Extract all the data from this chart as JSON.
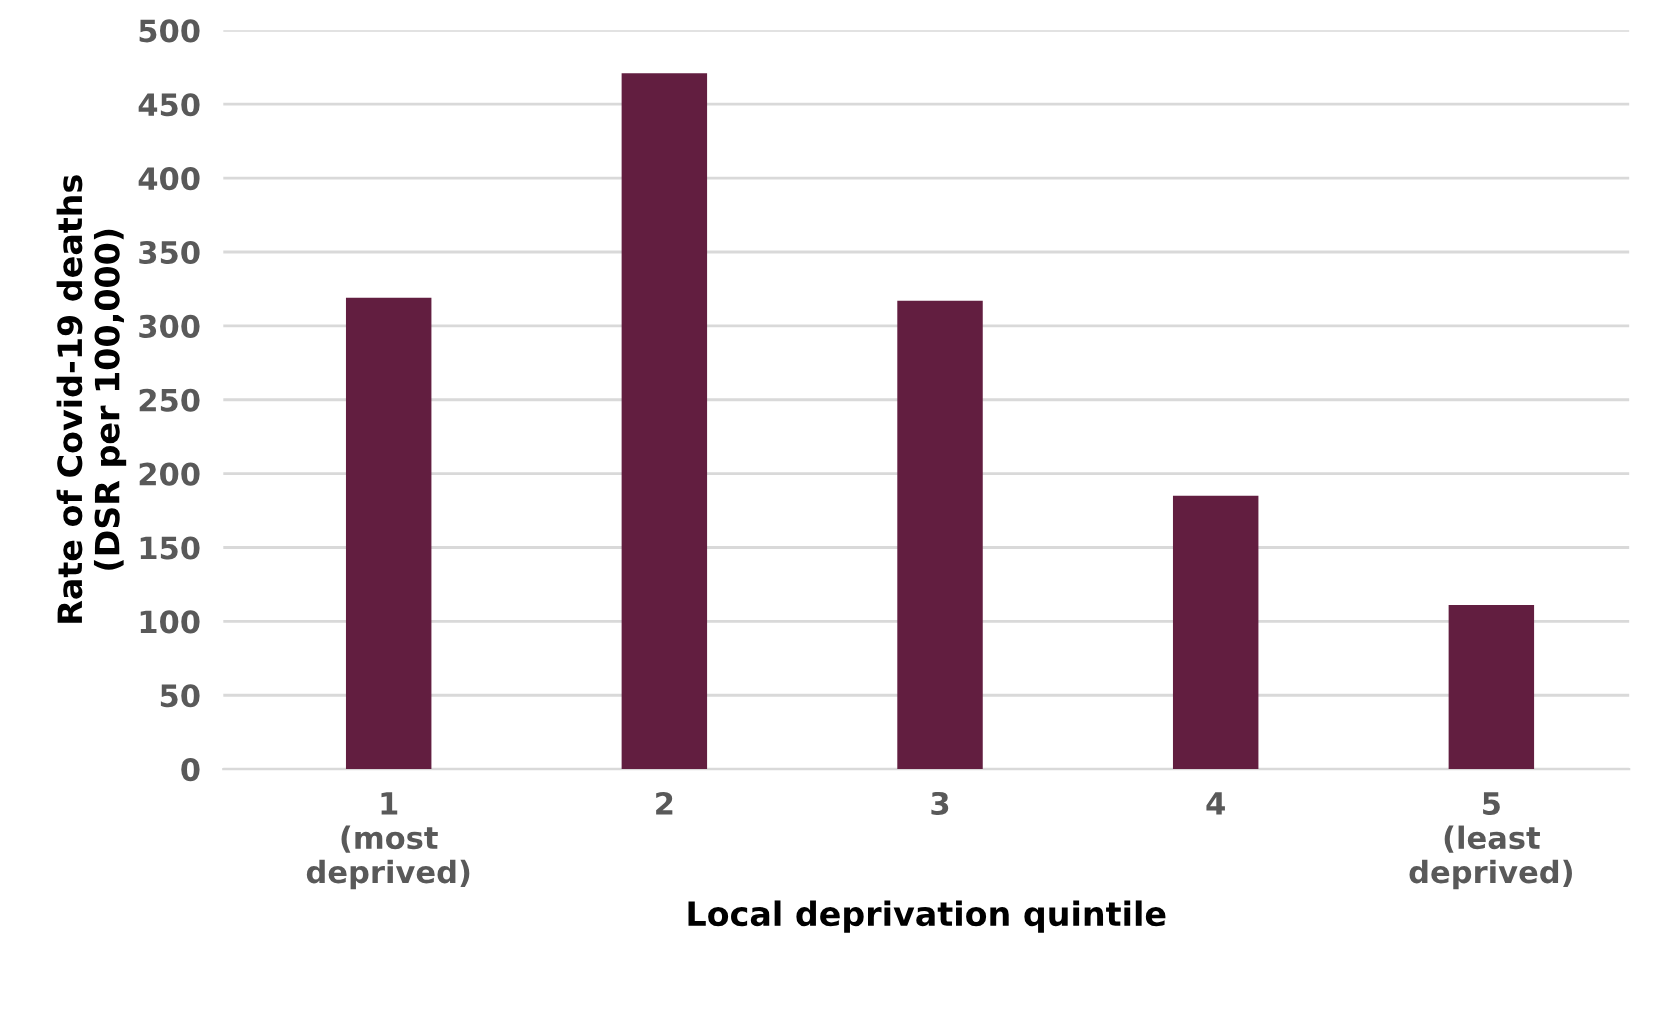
{
  "chart_data": {
    "type": "bar",
    "xlabel": "Local deprivation quintile",
    "ylabel": "Rate of Covid-19 deaths\n(DSR per 100,000)",
    "categories": [
      "1\n(most\ndeprived)",
      "2",
      "3",
      "4",
      "5\n(least\ndeprived)"
    ],
    "values": [
      319,
      471,
      317,
      185,
      111
    ],
    "color": "#621e40",
    "ylim": [
      0,
      500
    ],
    "yticks": [
      0,
      50,
      100,
      150,
      200,
      250,
      300,
      350,
      400,
      450,
      500
    ],
    "grid": "y",
    "legend": false
  }
}
